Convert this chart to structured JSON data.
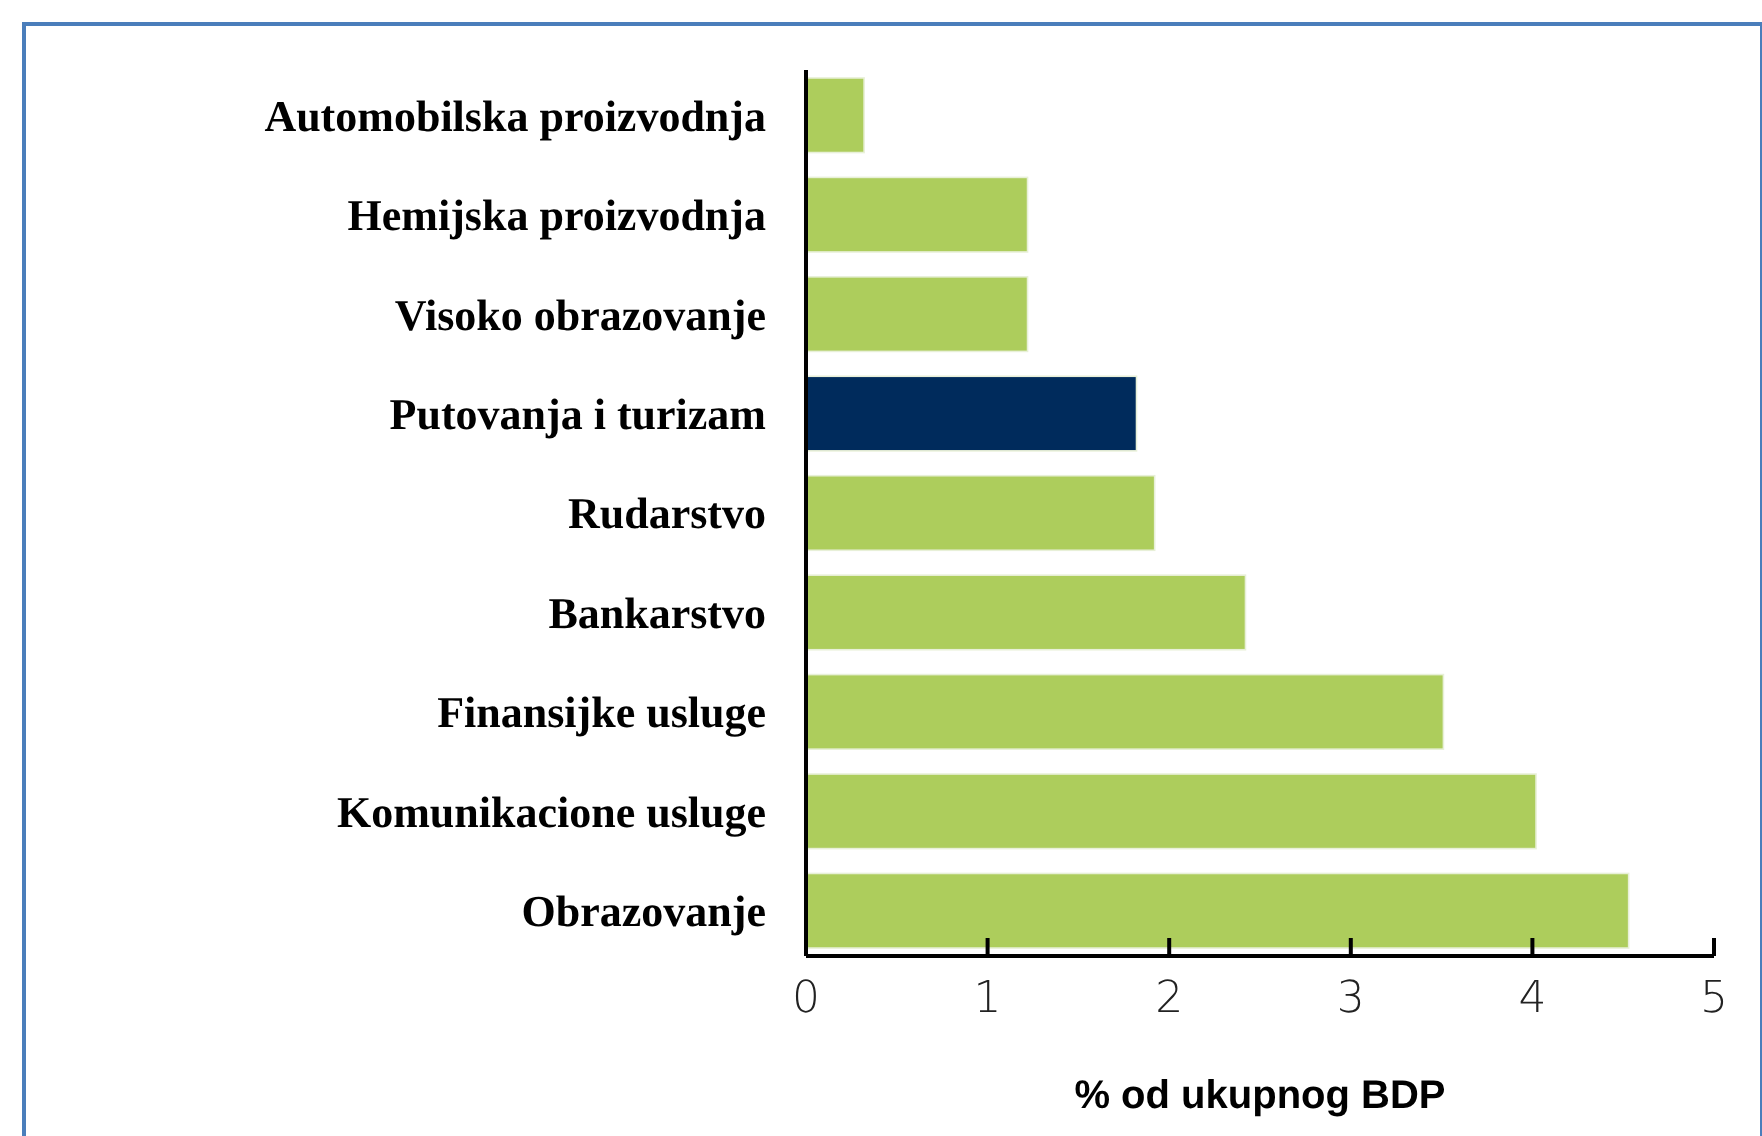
{
  "chart_data": {
    "type": "bar",
    "orientation": "horizontal",
    "xlabel": "% od ukupnog BDP",
    "categories": [
      "Automobilska proizvodnja",
      "Hemijska proizvodnja",
      "Visoko obrazovanje",
      "Putovanja i turizam",
      "Rudarstvo",
      "Bankarstvo",
      "Finansijke usluge",
      "Komunikacione usluge",
      "Obrazovanje"
    ],
    "values": [
      0.32,
      1.22,
      1.22,
      1.82,
      1.92,
      2.42,
      3.51,
      4.02,
      4.53
    ],
    "colors": [
      "#adcd5c",
      "#adcd5c",
      "#adcd5c",
      "#002b5c",
      "#adcd5c",
      "#adcd5c",
      "#adcd5c",
      "#adcd5c",
      "#adcd5c"
    ],
    "xlim": [
      0,
      5
    ],
    "xticks": [
      0,
      1,
      2,
      3,
      4,
      5
    ],
    "grid": false
  }
}
